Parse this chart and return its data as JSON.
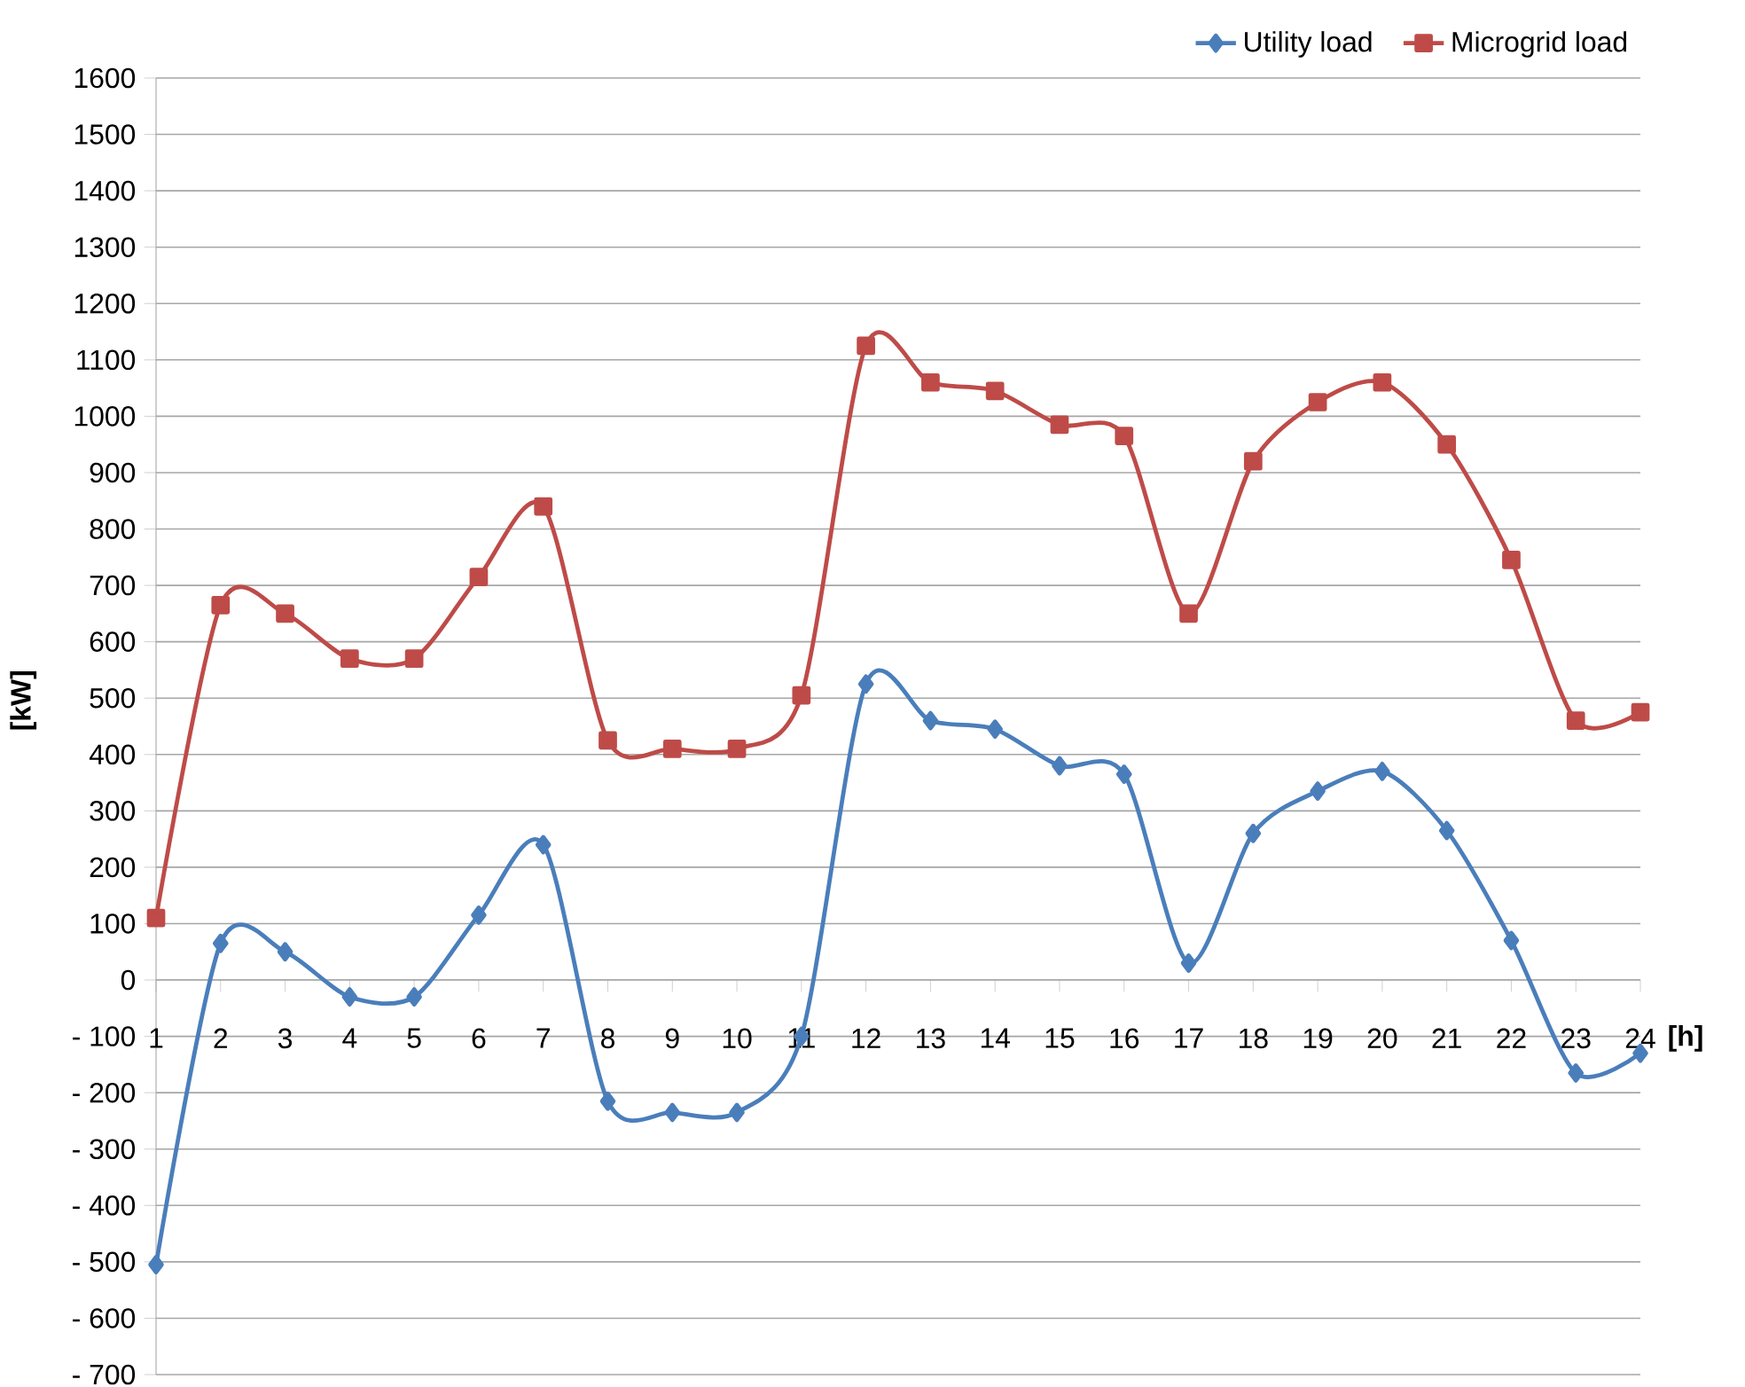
{
  "chart_data": {
    "type": "line",
    "xlabel": "[h]",
    "ylabel": "[kW]",
    "categories": [
      "1",
      "2",
      "3",
      "4",
      "5",
      "6",
      "7",
      "8",
      "9",
      "10",
      "11",
      "12",
      "13",
      "14",
      "15",
      "16",
      "17",
      "18",
      "19",
      "20",
      "21",
      "22",
      "23",
      "24"
    ],
    "series": [
      {
        "name": "Utility load",
        "color": "#4a7ebb",
        "marker": "diamond",
        "values": [
          -505,
          65,
          50,
          -30,
          -30,
          115,
          240,
          -215,
          -235,
          -235,
          -100,
          525,
          460,
          445,
          380,
          365,
          30,
          260,
          335,
          370,
          265,
          70,
          -165,
          -130
        ]
      },
      {
        "name": "Microgrid load",
        "color": "#be4b48",
        "marker": "square",
        "values": [
          110,
          665,
          650,
          570,
          570,
          715,
          840,
          425,
          410,
          410,
          505,
          1125,
          1060,
          1045,
          985,
          965,
          650,
          920,
          1025,
          1060,
          950,
          745,
          460,
          475
        ]
      }
    ],
    "ylim": [
      -700,
      1600
    ],
    "yticks": [
      {
        "value": -700,
        "label": "- 700"
      },
      {
        "value": -600,
        "label": "- 600"
      },
      {
        "value": -500,
        "label": "- 500"
      },
      {
        "value": -400,
        "label": "- 400"
      },
      {
        "value": -300,
        "label": "- 300"
      },
      {
        "value": -200,
        "label": "- 200"
      },
      {
        "value": -100,
        "label": "- 100"
      },
      0,
      100,
      200,
      300,
      400,
      500,
      600,
      700,
      800,
      900,
      1000,
      1100,
      1200,
      1300,
      1400,
      1500,
      1600
    ],
    "grid": "y",
    "legend": "top right",
    "line_style": "solid"
  }
}
